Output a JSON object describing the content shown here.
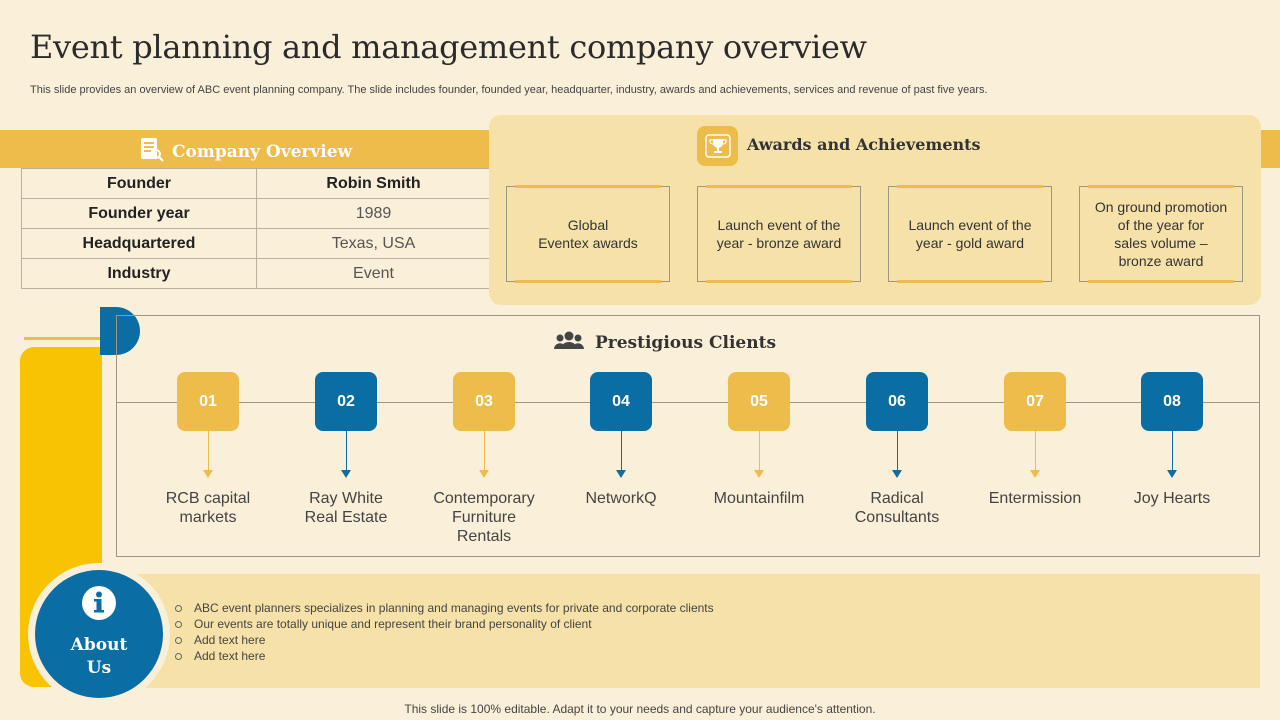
{
  "title": "Event planning and management company overview",
  "subtitle": "This slide provides an overview of ABC event planning company. The slide includes founder, founded year, headquarter, industry, awards and achievements, services and revenue of past five years.",
  "company_overview": {
    "heading": "Company Overview",
    "icon": "document-icon",
    "rows": [
      {
        "key": "Founder",
        "value": "Robin Smith"
      },
      {
        "key": "Founder year",
        "value": "1989"
      },
      {
        "key": "Headquartered",
        "value": "Texas, USA"
      },
      {
        "key": "Industry",
        "value": "Event"
      }
    ]
  },
  "awards": {
    "heading": "Awards and Achievements",
    "icon": "trophy-icon",
    "items": [
      "Global\nEventex awards",
      "Launch event of the\nyear - bronze award",
      "Launch event of the\nyear - gold award",
      "On ground promotion\nof the year for\nsales volume –\nbronze award"
    ]
  },
  "clients": {
    "heading": "Prestigious Clients",
    "icon": "people-icon",
    "items": [
      {
        "num": "01",
        "name": "RCB capital\nmarkets"
      },
      {
        "num": "02",
        "name": "Ray White\nReal Estate"
      },
      {
        "num": "03",
        "name": "Contemporary\nFurniture\nRentals"
      },
      {
        "num": "04",
        "name": "NetworkQ"
      },
      {
        "num": "05",
        "name": "Mountainfilm"
      },
      {
        "num": "06",
        "name": "Radical\nConsultants"
      },
      {
        "num": "07",
        "name": "Entermission"
      },
      {
        "num": "08",
        "name": "Joy Hearts"
      }
    ]
  },
  "about": {
    "label": "About\nUs",
    "icon": "info-icon",
    "bullets": [
      "ABC event planners specializes in planning and managing events for private  and corporate clients",
      "Our events are totally unique and represent their brand personality of client",
      "Add text here",
      "Add text here"
    ]
  },
  "footer": "This slide is 100% editable. Adapt it to your needs and capture your audience's attention.",
  "colors": {
    "yellow": "#EDBC4B",
    "blue": "#0A6EA4",
    "background": "#FAEFD8",
    "panel": "#F6E1A9",
    "accent_bar": "#F7C302"
  }
}
